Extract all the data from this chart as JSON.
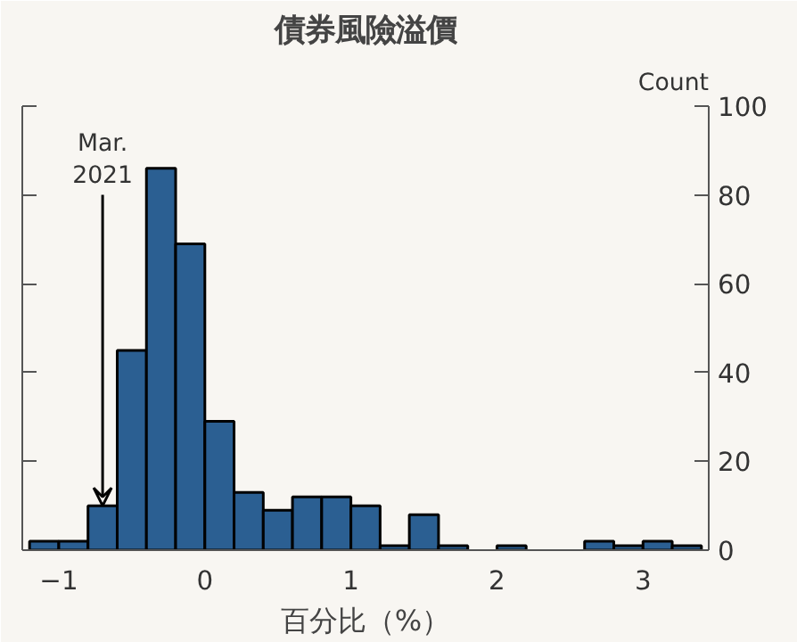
{
  "chart_data": {
    "type": "histogram",
    "title": "債券風險溢價",
    "xlabel": "百分比（%）",
    "ylabel": "Count",
    "bins": [
      -1.2,
      -1.0,
      -0.8,
      -0.6,
      -0.4,
      -0.2,
      0,
      0.2,
      0.4,
      0.6,
      0.8,
      1.0,
      1.2,
      1.4,
      1.6,
      1.8,
      2.0,
      2.2,
      2.4,
      2.6,
      2.8,
      3.0,
      3.2,
      3.4
    ],
    "values": [
      2,
      2,
      10,
      45,
      86,
      69,
      29,
      13,
      9,
      12,
      12,
      10,
      1,
      8,
      1,
      0,
      1,
      0,
      0,
      2,
      1,
      2,
      1
    ],
    "color": "#2b5f92",
    "xlim": [
      -1.25,
      3.45
    ],
    "xticks": [
      {
        "value": -1,
        "label": "−1"
      },
      0,
      1,
      2,
      3
    ],
    "ylim": [
      0,
      100
    ],
    "yticks": [
      0,
      20,
      40,
      60,
      80,
      100
    ],
    "annotations": [
      {
        "text": "Mar.\n2021",
        "x": -0.7,
        "y": 10
      }
    ],
    "grid": false
  }
}
